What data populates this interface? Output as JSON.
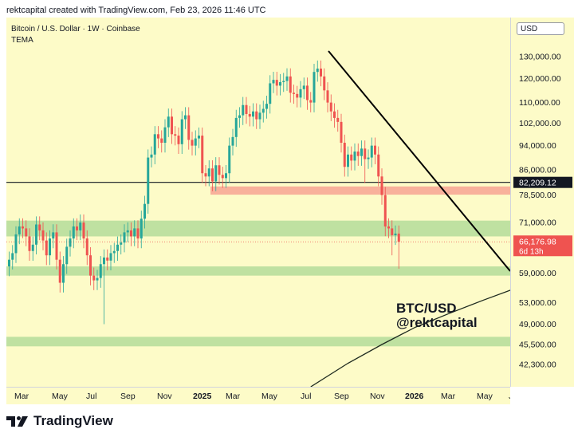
{
  "header": {
    "text": "rektcapital created with TradingView.com, Feb 23, 2026 11:46 UTC"
  },
  "legend": {
    "symbol": "Bitcoin / U.S. Dollar · 1W · Coinbase",
    "indicator": "TEMA"
  },
  "currency": "USD",
  "annotation": {
    "line1": "BTC/USD",
    "line2": "@rektcapital"
  },
  "logo": {
    "text": "TradingView"
  },
  "chart_data": {
    "type": "candlestick",
    "symbol": "Bitcoin / U.S. Dollar",
    "interval": "1W",
    "exchange": "Coinbase",
    "y_scale": "log",
    "ylim": [
      39000,
      150000
    ],
    "x_ticks": [
      "Mar",
      "May",
      "Jul",
      "Sep",
      "Nov",
      "2025",
      "Mar",
      "May",
      "Jul",
      "Sep",
      "Nov",
      "2026",
      "Mar",
      "May",
      "Jul"
    ],
    "y_ticks": [
      130000,
      120000,
      110000,
      102000,
      94000,
      86000,
      78500,
      71000,
      59000,
      53000,
      49000,
      45500,
      42300
    ],
    "y_tick_labels": [
      "130,000.00",
      "120,000.00",
      "110,000.00",
      "102,000.00",
      "94,000.00",
      "86,000.00",
      "78,500.00",
      "71,000.00",
      "59,000.00",
      "53,000.00",
      "49,000.00",
      "45,500.00",
      "42,300.00"
    ],
    "horizontal_line": {
      "value": 82209.12,
      "label": "82,209.12"
    },
    "last_price": {
      "value": 66176.98,
      "label": "66,176.98",
      "countdown": "6d 13h"
    },
    "support_zones": [
      {
        "low": 67500,
        "high": 71500,
        "color": "green"
      },
      {
        "low": 58500,
        "high": 60500,
        "color": "green"
      },
      {
        "low": 45200,
        "high": 46800,
        "color": "green"
      },
      {
        "low": 78600,
        "high": 81000,
        "color": "red"
      }
    ],
    "trendline": {
      "start": {
        "date": "2025-08-25",
        "price": 138000
      },
      "end": {
        "date": "2026-05-10",
        "price": 61000
      }
    },
    "closes": [
      62000,
      63500,
      68000,
      70000,
      69500,
      67500,
      64000,
      65500,
      70500,
      69000,
      66500,
      63000,
      67000,
      68500,
      62000,
      57000,
      61000,
      65000,
      67000,
      70000,
      69000,
      71000,
      67000,
      63000,
      58500,
      57500,
      58000,
      61000,
      62500,
      61800,
      63500,
      64000,
      65500,
      66000,
      68500,
      69000,
      67500,
      69500,
      67000,
      72000,
      76000,
      90000,
      91000,
      98000,
      96500,
      95000,
      100500,
      104500,
      98000,
      97500,
      94500,
      103500,
      105000,
      96000,
      94000,
      96500,
      97500,
      85000,
      84000,
      86500,
      82500,
      87500,
      84500,
      83500,
      85000,
      94000,
      97000,
      104000,
      105000,
      109000,
      105500,
      104500,
      106500,
      103500,
      106000,
      107500,
      109500,
      118000,
      119500,
      117000,
      118500,
      119000,
      121000,
      114000,
      113500,
      112000,
      115500,
      117000,
      111000,
      110000,
      123000,
      124500,
      121000,
      115000,
      110000,
      106500,
      104000,
      102500,
      95000,
      87000,
      91000,
      89000,
      92000,
      90500,
      93000,
      89500,
      90000,
      94000,
      91000,
      84000,
      78500,
      70000,
      69500,
      67800,
      68200,
      66177
    ],
    "tema": [
      [
        89,
        39000
      ],
      [
        100,
        42500
      ],
      [
        110,
        45500
      ],
      [
        120,
        48500
      ],
      [
        130,
        51000
      ],
      [
        140,
        53500
      ],
      [
        150,
        56000
      ],
      [
        160,
        58500
      ],
      [
        166,
        60000
      ],
      [
        172,
        62500
      ],
      [
        178,
        65000
      ],
      [
        182,
        67000
      ],
      [
        186,
        68500
      ],
      [
        189,
        68900
      ],
      [
        192,
        68800
      ],
      [
        195,
        68500
      ]
    ]
  }
}
